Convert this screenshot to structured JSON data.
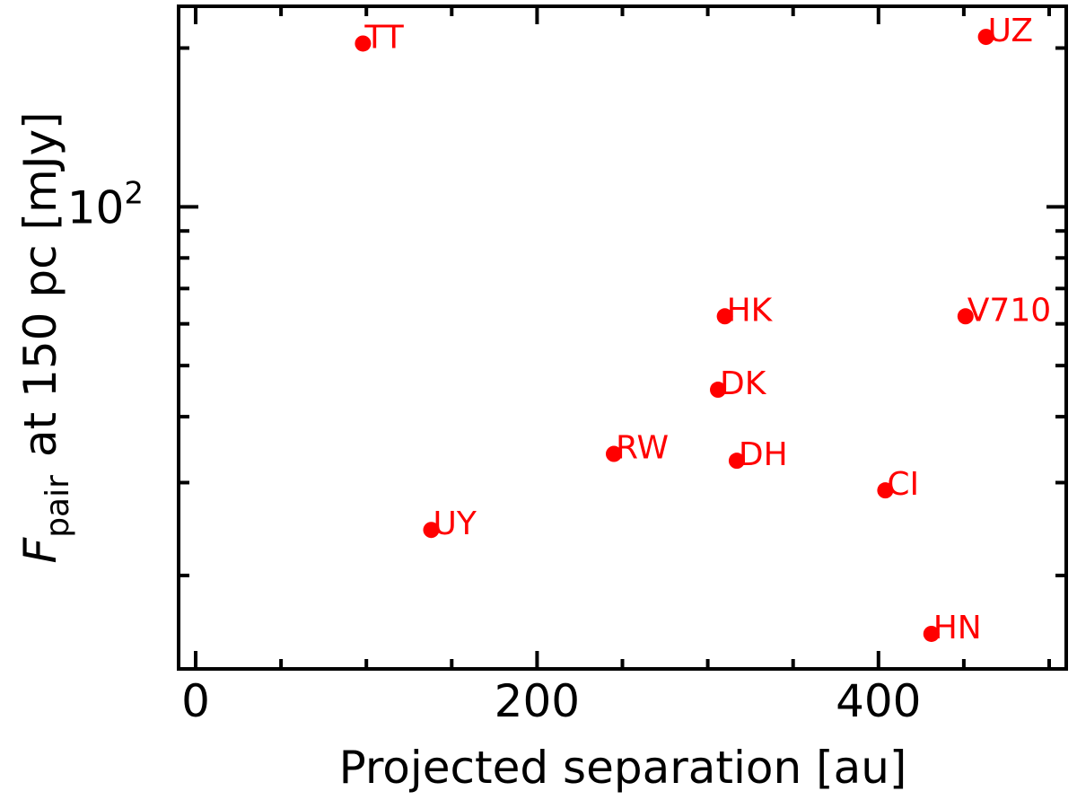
{
  "chart_data": {
    "type": "scatter",
    "title": "",
    "xlabel": "Projected separation [au]",
    "ylabel": {
      "symbol": "F",
      "subscript": "pair",
      "rest": "at 150 pc  [mJy]"
    },
    "xlim": [
      -10,
      510
    ],
    "ylim": [
      13.3,
      240
    ],
    "yscale": "log",
    "xticks": [
      0,
      200,
      400
    ],
    "xtick_labels": [
      "0",
      "200",
      "400"
    ],
    "xminor": [
      50,
      100,
      150,
      250,
      300,
      350,
      450,
      500
    ],
    "yticks": [
      100
    ],
    "ytick_labels": [
      {
        "base": "10",
        "exp": "2"
      }
    ],
    "yminor": [
      20,
      30,
      40,
      50,
      60,
      70,
      80,
      90,
      200
    ],
    "grid": false,
    "color": "#ff0000",
    "points": [
      {
        "label": "TT",
        "x": 98,
        "y": 204
      },
      {
        "label": "UZ",
        "x": 463,
        "y": 210
      },
      {
        "label": "HK",
        "x": 310,
        "y": 62
      },
      {
        "label": "V710",
        "x": 451,
        "y": 62
      },
      {
        "label": "DK",
        "x": 306,
        "y": 45
      },
      {
        "label": "RW",
        "x": 245,
        "y": 34
      },
      {
        "label": "DH",
        "x": 317,
        "y": 33
      },
      {
        "label": "CI",
        "x": 404,
        "y": 29
      },
      {
        "label": "UY",
        "x": 138,
        "y": 24.4
      },
      {
        "label": "HN",
        "x": 431,
        "y": 15.5
      }
    ]
  }
}
